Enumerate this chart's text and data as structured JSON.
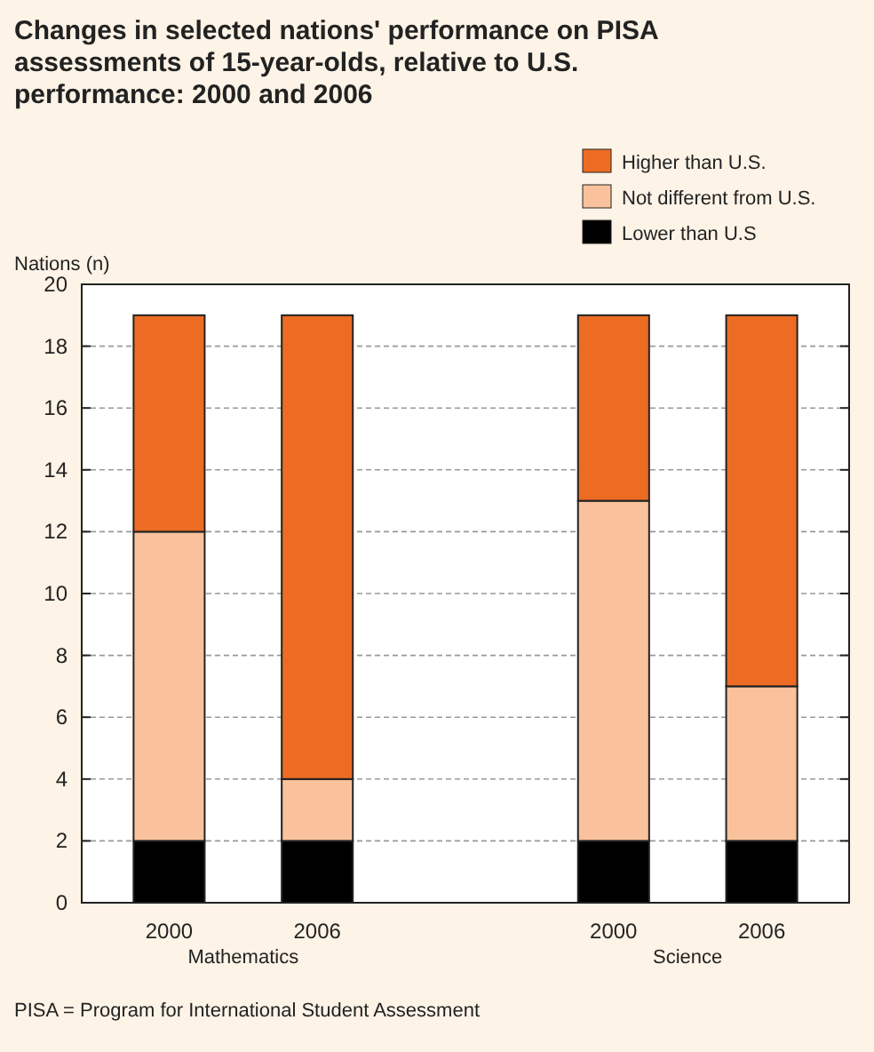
{
  "chart_data": {
    "type": "bar",
    "stacked": true,
    "title": "Changes in selected nations' performance on PISA assessments of 15-year-olds, relative to U.S. performance: 2000 and 2006",
    "ylabel": "Nations (n)",
    "categories": [
      "2000",
      "2006",
      null,
      "2000",
      "2006"
    ],
    "series": [
      {
        "name": "Lower than U.S",
        "color": "#000000",
        "values": [
          2,
          2,
          null,
          2,
          2
        ]
      },
      {
        "name": "Not different from U.S.",
        "color": "#f9c29c",
        "values": [
          10,
          2,
          null,
          11,
          5
        ]
      },
      {
        "name": "Higher than U.S.",
        "color": "#ec6c24",
        "values": [
          7,
          15,
          null,
          6,
          12
        ]
      }
    ],
    "ylim": [
      0,
      20
    ],
    "yticks": [
      0,
      2,
      4,
      6,
      8,
      10,
      12,
      14,
      16,
      18,
      20
    ],
    "grid": "y",
    "legend": "top right",
    "annotations": [
      "Mathematics",
      "Science",
      "PISA = Program for International Student Assessment"
    ]
  }
}
